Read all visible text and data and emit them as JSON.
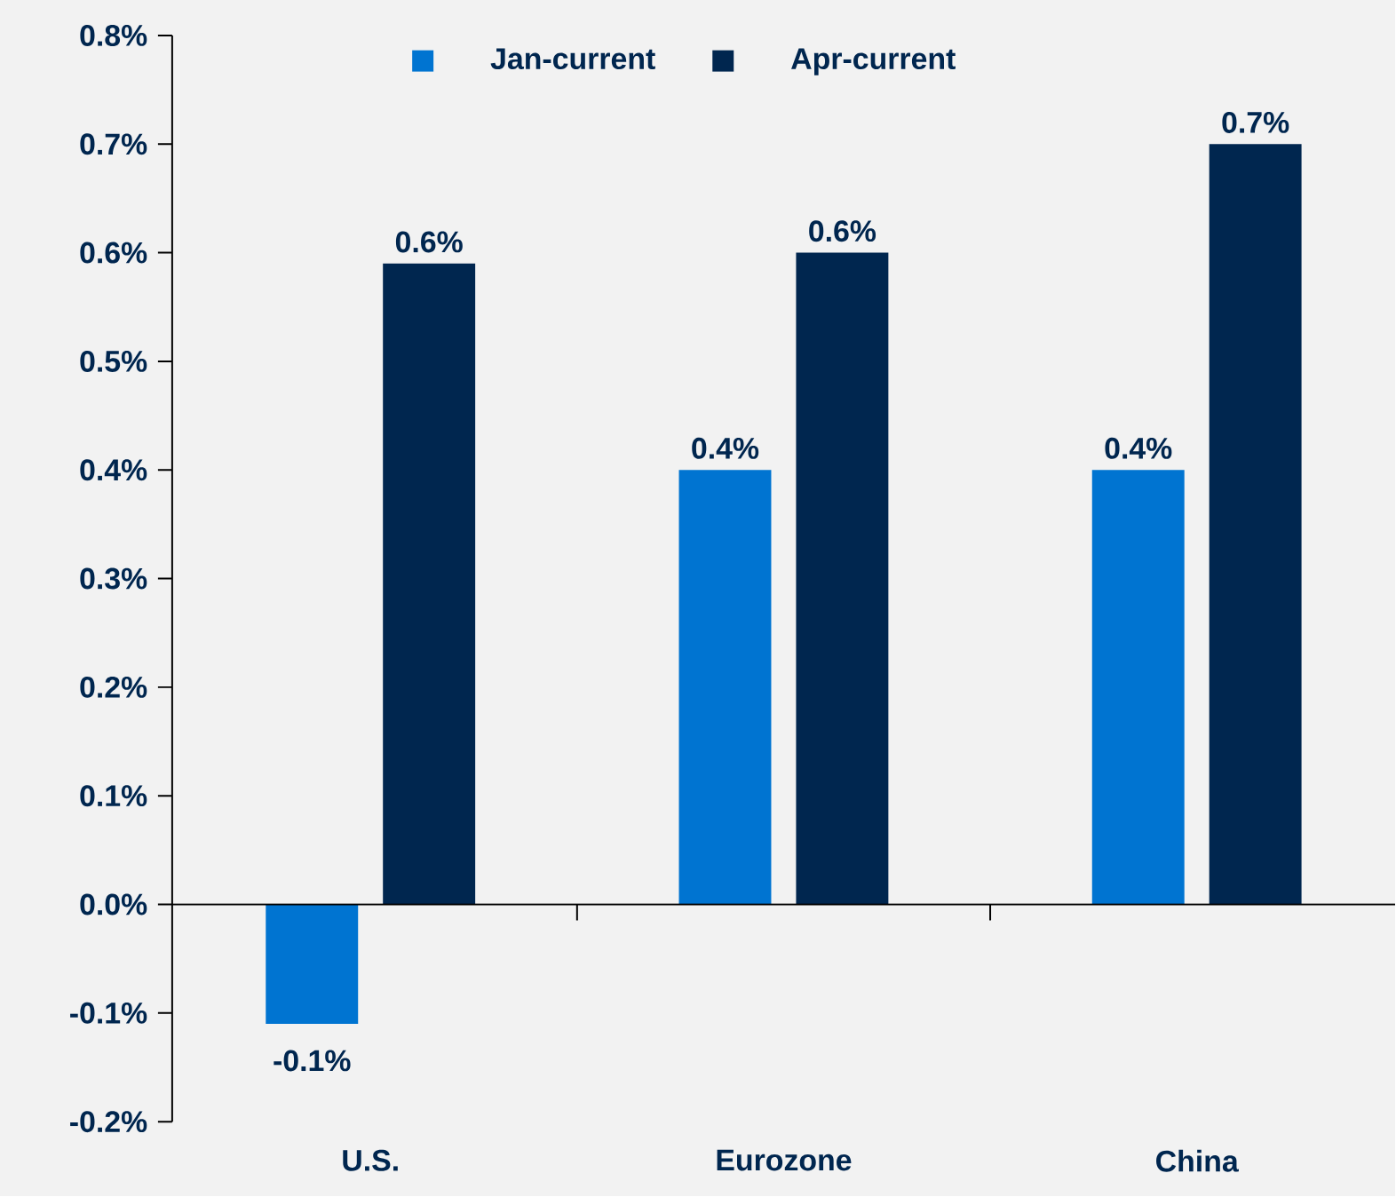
{
  "chart_data": {
    "type": "bar",
    "categories": [
      "U.S.",
      "Eurozone",
      "China"
    ],
    "series": [
      {
        "name": "Jan-current",
        "color": "#0074d1",
        "values": [
          -0.11,
          0.4,
          0.4
        ],
        "value_labels": [
          "-0.1%",
          "0.4%",
          "0.4%"
        ]
      },
      {
        "name": "Apr-current",
        "color": "#00264f",
        "values": [
          0.59,
          0.6,
          0.7
        ],
        "value_labels": [
          "0.6%",
          "0.6%",
          "0.7%"
        ]
      }
    ],
    "ylim": [
      -0.2,
      0.8
    ],
    "yticks": [
      {
        "value": -0.2,
        "label": "-0.2%"
      },
      {
        "value": -0.1,
        "label": "-0.1%"
      },
      {
        "value": 0,
        "label": "0.0%"
      },
      {
        "value": 0.1,
        "label": "0.1%"
      },
      {
        "value": 0.2,
        "label": "0.2%"
      },
      {
        "value": 0.3,
        "label": "0.3%"
      },
      {
        "value": 0.4,
        "label": "0.4%"
      },
      {
        "value": 0.5,
        "label": "0.5%"
      },
      {
        "value": 0.6,
        "label": "0.6%"
      },
      {
        "value": 0.7,
        "label": "0.7%"
      },
      {
        "value": 0.8,
        "label": "0.8%"
      }
    ],
    "ref_lines": [
      {
        "axis": "y",
        "value": 0,
        "color": "#000000"
      }
    ],
    "legend": "top"
  }
}
